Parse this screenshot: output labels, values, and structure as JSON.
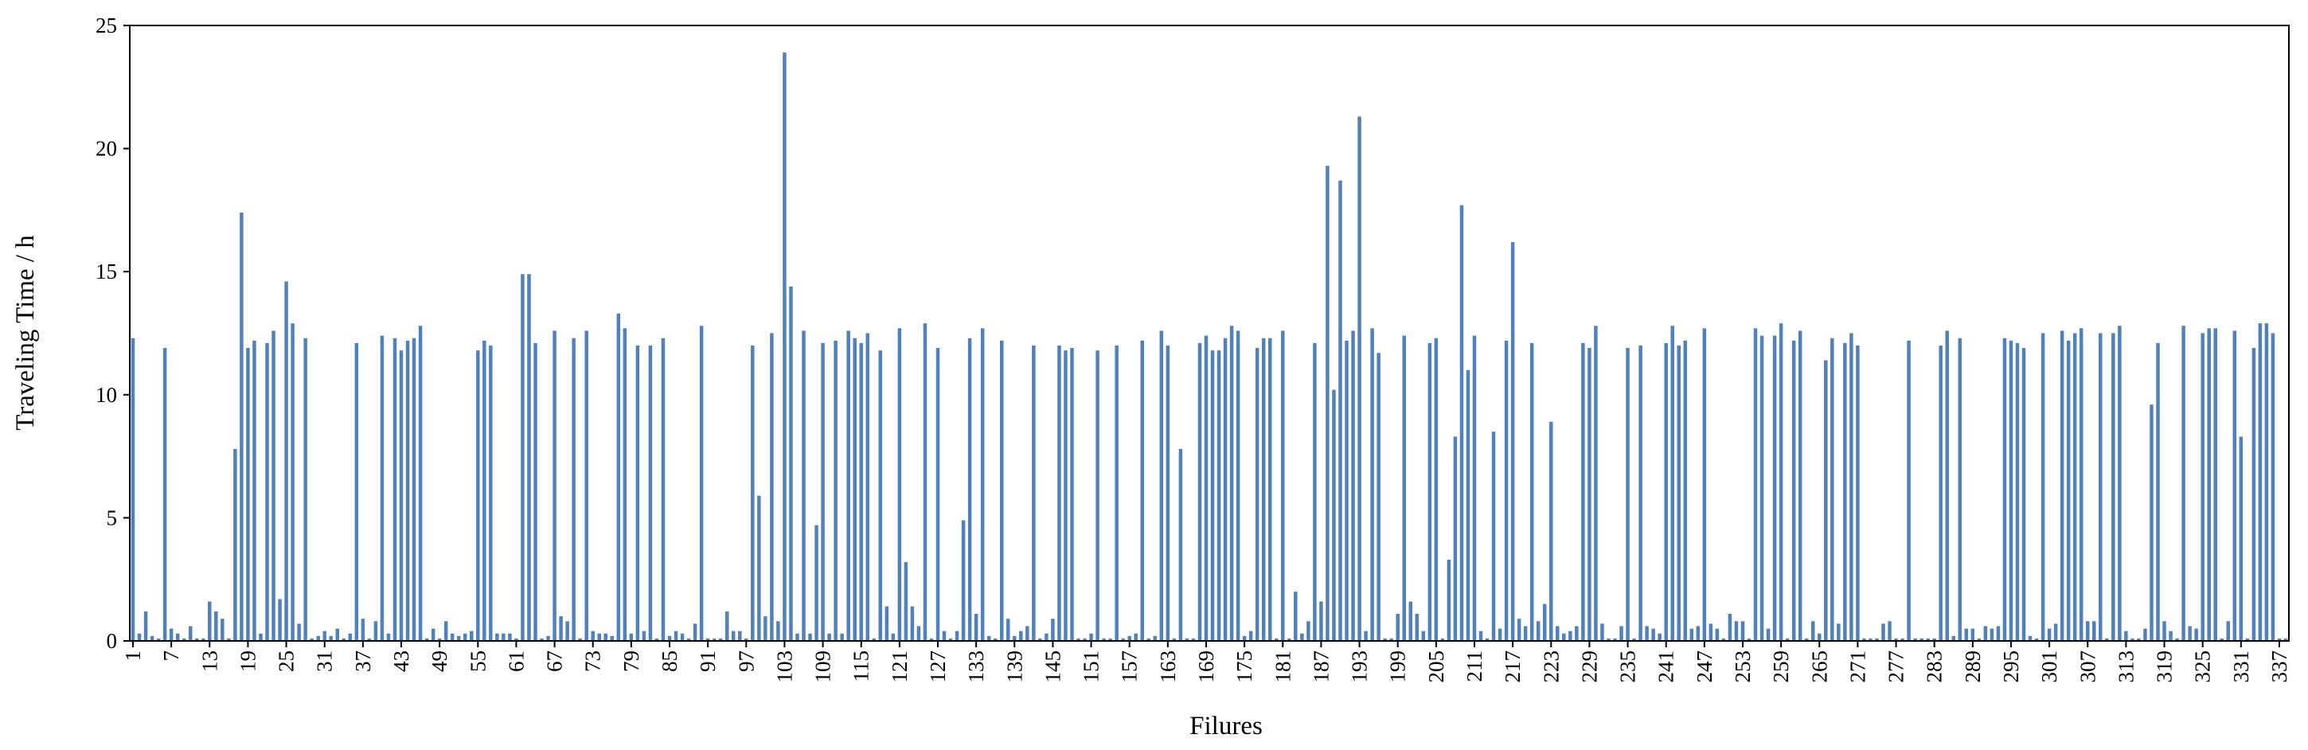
{
  "chart_data": {
    "type": "bar",
    "x_label": "Filures",
    "y_label": "Traveling Time / h",
    "color": "#4f81bd",
    "ylim": [
      0,
      25
    ],
    "yticks": [
      0,
      5,
      10,
      15,
      20,
      25
    ],
    "categories": [
      "1",
      null,
      null,
      null,
      null,
      null,
      "7",
      null,
      null,
      null,
      null,
      null,
      "13",
      null,
      null,
      null,
      null,
      null,
      "19",
      null,
      null,
      null,
      null,
      null,
      "25",
      null,
      null,
      null,
      null,
      null,
      "31",
      null,
      null,
      null,
      null,
      null,
      "37",
      null,
      null,
      null,
      null,
      null,
      "43",
      null,
      null,
      null,
      null,
      null,
      "49",
      null,
      null,
      null,
      null,
      null,
      "55",
      null,
      null,
      null,
      null,
      null,
      "61",
      null,
      null,
      null,
      null,
      null,
      "67",
      null,
      null,
      null,
      null,
      null,
      "73",
      null,
      null,
      null,
      null,
      null,
      "79",
      null,
      null,
      null,
      null,
      null,
      "85",
      null,
      null,
      null,
      null,
      null,
      "91",
      null,
      null,
      null,
      null,
      null,
      "97",
      null,
      null,
      null,
      null,
      null,
      "103",
      null,
      null,
      null,
      null,
      null,
      "109",
      null,
      null,
      null,
      null,
      null,
      "115",
      null,
      null,
      null,
      null,
      null,
      "121",
      null,
      null,
      null,
      null,
      null,
      "127",
      null,
      null,
      null,
      null,
      null,
      "133",
      null,
      null,
      null,
      null,
      null,
      "139",
      null,
      null,
      null,
      null,
      null,
      "145",
      null,
      null,
      null,
      null,
      null,
      "151",
      null,
      null,
      null,
      null,
      null,
      "157",
      null,
      null,
      null,
      null,
      null,
      "163",
      null,
      null,
      null,
      null,
      null,
      "169",
      null,
      null,
      null,
      null,
      null,
      "175",
      null,
      null,
      null,
      null,
      null,
      "181",
      null,
      null,
      null,
      null,
      null,
      "187",
      null,
      null,
      null,
      null,
      null,
      "193",
      null,
      null,
      null,
      null,
      null,
      "199",
      null,
      null,
      null,
      null,
      null,
      "205",
      null,
      null,
      null,
      null,
      null,
      "211",
      null,
      null,
      null,
      null,
      null,
      "217",
      null,
      null,
      null,
      null,
      null,
      "223",
      null,
      null,
      null,
      null,
      null,
      "229",
      null,
      null,
      null,
      null,
      null,
      "235",
      null,
      null,
      null,
      null,
      null,
      "241",
      null,
      null,
      null,
      null,
      null,
      "247",
      null,
      null,
      null,
      null,
      null,
      "253",
      null,
      null,
      null,
      null,
      null,
      "259",
      null,
      null,
      null,
      null,
      null,
      "265",
      null,
      null,
      null,
      null,
      null,
      "271",
      null,
      null,
      null,
      null,
      null,
      "277",
      null,
      null,
      null,
      null,
      null,
      "283",
      null,
      null,
      null,
      null,
      null,
      "289",
      null,
      null,
      null,
      null,
      null,
      "295",
      null,
      null,
      null,
      null,
      null,
      "301",
      null,
      null,
      null,
      null,
      null,
      "307",
      null,
      null,
      null,
      null,
      null,
      "313",
      null,
      null,
      null,
      null,
      null,
      "319",
      null,
      null,
      null,
      null,
      null,
      "325",
      null,
      null,
      null,
      null,
      null,
      "331",
      null,
      null,
      null,
      null,
      null,
      "337",
      null
    ],
    "values": [
      12.3,
      0.3,
      1.2,
      0.2,
      0.1,
      11.9,
      0.5,
      0.3,
      0.1,
      0.6,
      0.1,
      0.1,
      1.6,
      1.2,
      0.9,
      0.1,
      7.8,
      17.4,
      11.9,
      12.2,
      0.3,
      12.1,
      12.6,
      1.7,
      14.6,
      12.9,
      0.7,
      12.3,
      0.1,
      0.2,
      0.4,
      0.2,
      0.5,
      0.1,
      0.3,
      12.1,
      0.9,
      0.1,
      0.8,
      12.4,
      0.3,
      12.3,
      11.8,
      12.2,
      12.3,
      12.8,
      0.1,
      0.5,
      0.1,
      0.8,
      0.3,
      0.2,
      0.3,
      0.4,
      11.8,
      12.2,
      12.0,
      0.3,
      0.3,
      0.3,
      0.1,
      14.9,
      14.9,
      12.1,
      0.1,
      0.2,
      12.6,
      1.0,
      0.8,
      12.3,
      0.1,
      12.6,
      0.4,
      0.3,
      0.3,
      0.2,
      13.3,
      12.7,
      0.3,
      12.0,
      0.4,
      12.0,
      0.1,
      12.3,
      0.2,
      0.4,
      0.3,
      0.1,
      0.7,
      12.8,
      0.1,
      0.1,
      0.1,
      1.2,
      0.4,
      0.4,
      0.1,
      12.0,
      5.9,
      1.0,
      12.5,
      0.8,
      23.9,
      14.4,
      0.3,
      12.6,
      0.3,
      4.7,
      12.1,
      0.3,
      12.2,
      0.3,
      12.6,
      12.3,
      12.1,
      12.5,
      0.1,
      11.8,
      1.4,
      0.3,
      12.7,
      3.2,
      1.4,
      0.6,
      12.9,
      0.1,
      11.9,
      0.4,
      0.1,
      0.4,
      4.9,
      12.3,
      1.1,
      12.7,
      0.2,
      0.1,
      12.2,
      0.9,
      0.2,
      0.4,
      0.6,
      12.0,
      0.1,
      0.3,
      0.9,
      12.0,
      11.8,
      11.9,
      0.1,
      0.1,
      0.3,
      11.8,
      0.1,
      0.1,
      12.0,
      0.1,
      0.2,
      0.3,
      12.2,
      0.1,
      0.2,
      12.6,
      12.0,
      0.1,
      7.8,
      0.1,
      0.1,
      12.1,
      12.4,
      11.8,
      11.8,
      12.3,
      12.8,
      12.6,
      0.2,
      0.4,
      11.9,
      12.3,
      12.3,
      0.1,
      12.6,
      0.1,
      2.0,
      0.3,
      0.8,
      12.1,
      1.6,
      19.3,
      10.2,
      18.7,
      12.2,
      12.6,
      21.3,
      0.4,
      12.7,
      11.7,
      0.1,
      0.1,
      1.1,
      12.4,
      1.6,
      1.1,
      0.4,
      12.1,
      12.3,
      0.1,
      3.3,
      8.3,
      17.7,
      11.0,
      12.4,
      0.4,
      0.1,
      8.5,
      0.5,
      12.2,
      16.2,
      0.9,
      0.6,
      12.1,
      0.8,
      1.5,
      8.9,
      0.6,
      0.3,
      0.4,
      0.6,
      12.1,
      11.9,
      12.8,
      0.7,
      0.1,
      0.1,
      0.6,
      11.9,
      0.1,
      12.0,
      0.6,
      0.5,
      0.3,
      12.1,
      12.8,
      12.0,
      12.2,
      0.5,
      0.6,
      12.7,
      0.7,
      0.5,
      0.1,
      1.1,
      0.8,
      0.8,
      0.1,
      12.7,
      12.4,
      0.5,
      12.4,
      12.9,
      0.1,
      12.2,
      12.6,
      0.1,
      0.8,
      0.3,
      11.4,
      12.3,
      0.7,
      12.1,
      12.5,
      12.0,
      0.1,
      0.1,
      0.1,
      0.7,
      0.8,
      0.1,
      0.1,
      12.2,
      0.1,
      0.1,
      0.1,
      0.1,
      12.0,
      12.6,
      0.2,
      12.3,
      0.5,
      0.5,
      0.1,
      0.6,
      0.5,
      0.6,
      12.3,
      12.2,
      12.1,
      11.9,
      0.2,
      0.1,
      12.5,
      0.5,
      0.7,
      12.6,
      12.2,
      12.5,
      12.7,
      0.8,
      0.8,
      12.5,
      0.1,
      12.5,
      12.8,
      0.4,
      0.1,
      0.1,
      0.5,
      9.6,
      12.1,
      0.8,
      0.4,
      0.1,
      12.8,
      0.6,
      0.5,
      12.5,
      12.7,
      12.7,
      0.1,
      0.8,
      12.6,
      8.3,
      0.1,
      11.9,
      12.9,
      12.9,
      12.5,
      0.1,
      0.1
    ]
  }
}
